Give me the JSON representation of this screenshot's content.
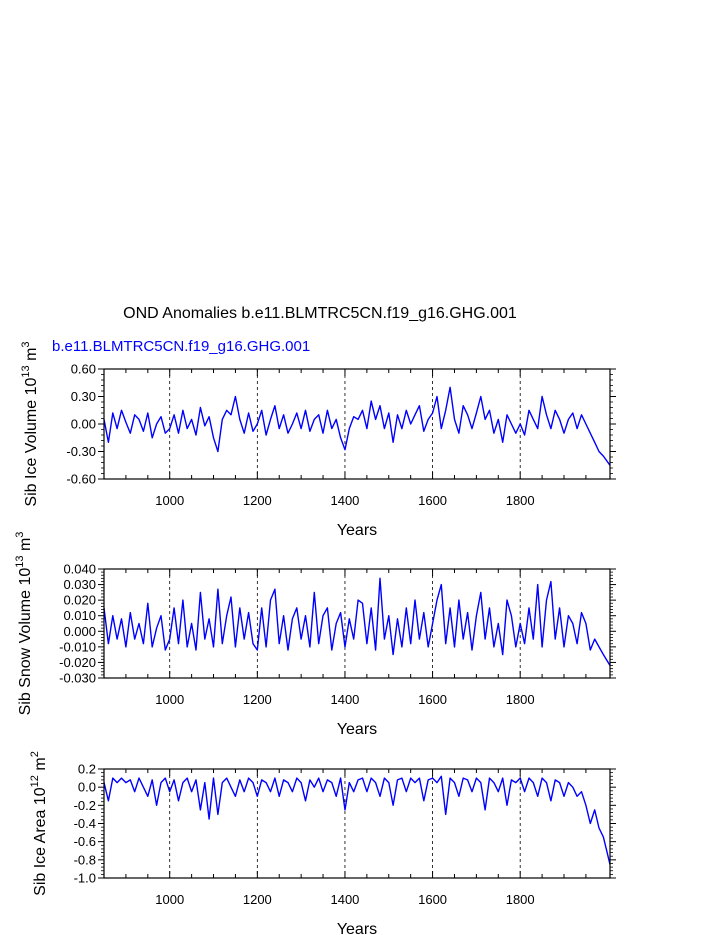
{
  "figure": {
    "title": "OND Anomalies b.e11.BLMTRC5CN.f19_g16.GHG.001",
    "run_label": "b.e11.BLMTRC5CN.f19_g16.GHG.001",
    "line_color": "#0000ff"
  },
  "chart_data": [
    {
      "type": "line",
      "title": "",
      "xlabel": "Years",
      "ylabel_prefix": "Sib Ice Volume 10",
      "ylabel_exp": "13",
      "ylabel_unit": "m",
      "ylabel_unit_exp": "3",
      "xlim": [
        850,
        2005
      ],
      "ylim": [
        -0.6,
        0.6
      ],
      "x_ticks": [
        1000,
        1200,
        1400,
        1600,
        1800
      ],
      "y_ticks": [
        "-0.60",
        "-0.30",
        "0.00",
        "0.30",
        "0.60"
      ],
      "grid": "vertical dashed at x ticks",
      "series": [
        {
          "x": [
            850,
            860,
            870,
            880,
            890,
            900,
            910,
            920,
            930,
            940,
            950,
            960,
            970,
            980,
            990,
            1000,
            1010,
            1020,
            1030,
            1040,
            1050,
            1060,
            1070,
            1080,
            1090,
            1100,
            1110,
            1120,
            1130,
            1140,
            1150,
            1160,
            1170,
            1180,
            1190,
            1200,
            1210,
            1220,
            1230,
            1240,
            1250,
            1260,
            1270,
            1280,
            1290,
            1300,
            1310,
            1320,
            1330,
            1340,
            1350,
            1360,
            1370,
            1380,
            1390,
            1400,
            1410,
            1420,
            1430,
            1440,
            1450,
            1460,
            1470,
            1480,
            1490,
            1500,
            1510,
            1520,
            1530,
            1540,
            1550,
            1560,
            1570,
            1580,
            1590,
            1600,
            1610,
            1620,
            1630,
            1640,
            1650,
            1660,
            1670,
            1680,
            1690,
            1700,
            1710,
            1720,
            1730,
            1740,
            1750,
            1760,
            1770,
            1780,
            1790,
            1800,
            1810,
            1820,
            1830,
            1840,
            1850,
            1860,
            1870,
            1880,
            1890,
            1900,
            1910,
            1920,
            1930,
            1940,
            1950,
            1960,
            1970,
            1980,
            1990,
            2005
          ],
          "values": [
            0.05,
            -0.2,
            0.12,
            -0.05,
            0.15,
            0.02,
            -0.1,
            0.1,
            0.05,
            -0.08,
            0.12,
            -0.15,
            0.0,
            0.08,
            -0.1,
            -0.05,
            0.1,
            -0.1,
            0.15,
            -0.05,
            0.05,
            -0.12,
            0.18,
            -0.02,
            0.08,
            -0.15,
            -0.3,
            0.05,
            0.15,
            0.1,
            0.3,
            0.05,
            -0.1,
            0.12,
            -0.08,
            0.0,
            0.15,
            -0.12,
            0.05,
            0.2,
            -0.05,
            0.1,
            -0.1,
            0.0,
            0.12,
            -0.05,
            0.15,
            -0.08,
            0.05,
            0.1,
            -0.1,
            0.15,
            -0.05,
            0.05,
            -0.15,
            -0.28,
            -0.05,
            0.08,
            0.05,
            0.15,
            -0.05,
            0.25,
            0.05,
            0.2,
            -0.05,
            0.12,
            -0.2,
            0.1,
            -0.05,
            0.15,
            0.0,
            0.1,
            0.2,
            -0.08,
            0.05,
            0.12,
            0.3,
            -0.05,
            0.15,
            0.4,
            0.05,
            -0.1,
            0.2,
            0.1,
            -0.05,
            0.12,
            0.3,
            0.05,
            0.15,
            -0.1,
            0.05,
            -0.2,
            0.1,
            0.0,
            -0.1,
            0.0,
            -0.12,
            0.15,
            0.05,
            -0.05,
            0.3,
            0.1,
            -0.05,
            0.15,
            0.05,
            -0.1,
            0.05,
            0.12,
            -0.05,
            0.1,
            0.0,
            -0.1,
            -0.2,
            -0.3,
            -0.35,
            -0.45
          ]
        }
      ]
    },
    {
      "type": "line",
      "title": "",
      "xlabel": "Years",
      "ylabel_prefix": "Sib Snow Volume 10",
      "ylabel_exp": "13",
      "ylabel_unit": "m",
      "ylabel_unit_exp": "3",
      "xlim": [
        850,
        2005
      ],
      "ylim": [
        -0.03,
        0.04
      ],
      "x_ticks": [
        1000,
        1200,
        1400,
        1600,
        1800
      ],
      "y_ticks": [
        "-0.030",
        "-0.020",
        "-0.010",
        "0.000",
        "0.010",
        "0.020",
        "0.030",
        "0.040"
      ],
      "grid": "vertical dashed at x ticks",
      "series": [
        {
          "x": [
            850,
            860,
            870,
            880,
            890,
            900,
            910,
            920,
            930,
            940,
            950,
            960,
            970,
            980,
            990,
            1000,
            1010,
            1020,
            1030,
            1040,
            1050,
            1060,
            1070,
            1080,
            1090,
            1100,
            1110,
            1120,
            1130,
            1140,
            1150,
            1160,
            1170,
            1180,
            1190,
            1200,
            1210,
            1220,
            1230,
            1240,
            1250,
            1260,
            1270,
            1280,
            1290,
            1300,
            1310,
            1320,
            1330,
            1340,
            1350,
            1360,
            1370,
            1380,
            1390,
            1400,
            1410,
            1420,
            1430,
            1440,
            1450,
            1460,
            1470,
            1480,
            1490,
            1500,
            1510,
            1520,
            1530,
            1540,
            1550,
            1560,
            1570,
            1580,
            1590,
            1600,
            1610,
            1620,
            1630,
            1640,
            1650,
            1660,
            1670,
            1680,
            1690,
            1700,
            1710,
            1720,
            1730,
            1740,
            1750,
            1760,
            1770,
            1780,
            1790,
            1800,
            1810,
            1820,
            1830,
            1840,
            1850,
            1860,
            1870,
            1880,
            1890,
            1900,
            1910,
            1920,
            1930,
            1940,
            1950,
            1960,
            1970,
            1980,
            1990,
            2005
          ],
          "values": [
            0.015,
            -0.008,
            0.01,
            -0.005,
            0.008,
            -0.01,
            0.012,
            -0.005,
            0.005,
            -0.008,
            0.018,
            -0.01,
            0.002,
            0.01,
            -0.012,
            -0.005,
            0.015,
            -0.008,
            0.02,
            -0.01,
            0.005,
            -0.012,
            0.025,
            -0.005,
            0.008,
            -0.01,
            0.027,
            -0.008,
            0.01,
            0.022,
            -0.01,
            0.015,
            -0.005,
            0.012,
            -0.008,
            -0.012,
            0.015,
            -0.01,
            0.02,
            0.027,
            -0.008,
            0.01,
            -0.012,
            0.008,
            0.015,
            -0.005,
            0.01,
            -0.01,
            0.025,
            -0.008,
            0.01,
            0.015,
            -0.012,
            0.005,
            0.012,
            -0.01,
            0.008,
            -0.005,
            0.02,
            0.018,
            -0.008,
            0.015,
            -0.012,
            0.034,
            -0.005,
            0.01,
            -0.015,
            0.008,
            -0.01,
            0.015,
            -0.008,
            0.02,
            -0.005,
            0.012,
            -0.01,
            0.005,
            0.02,
            0.03,
            -0.008,
            0.015,
            -0.01,
            0.02,
            -0.005,
            0.012,
            -0.012,
            0.01,
            0.025,
            -0.005,
            0.015,
            -0.01,
            0.005,
            -0.015,
            0.02,
            0.01,
            -0.01,
            0.005,
            -0.008,
            0.015,
            -0.005,
            0.03,
            -0.01,
            0.02,
            0.032,
            -0.005,
            0.015,
            -0.01,
            0.01,
            0.005,
            -0.008,
            0.012,
            0.005,
            -0.012,
            -0.005,
            -0.01,
            -0.015,
            -0.022
          ]
        }
      ]
    },
    {
      "type": "line",
      "title": "",
      "xlabel": "Years",
      "ylabel_prefix": "Sib Ice Area 10",
      "ylabel_exp": "12",
      "ylabel_unit": "m",
      "ylabel_unit_exp": "2",
      "xlim": [
        850,
        2005
      ],
      "ylim": [
        -1.0,
        0.2
      ],
      "x_ticks": [
        1000,
        1200,
        1400,
        1600,
        1800
      ],
      "y_ticks": [
        "-1.0",
        "-0.8",
        "-0.6",
        "-0.4",
        "-0.2",
        "0.0",
        "0.2"
      ],
      "grid": "vertical dashed at x ticks",
      "series": [
        {
          "x": [
            850,
            860,
            870,
            880,
            890,
            900,
            910,
            920,
            930,
            940,
            950,
            960,
            970,
            980,
            990,
            1000,
            1010,
            1020,
            1030,
            1040,
            1050,
            1060,
            1070,
            1080,
            1090,
            1100,
            1110,
            1120,
            1130,
            1140,
            1150,
            1160,
            1170,
            1180,
            1190,
            1200,
            1210,
            1220,
            1230,
            1240,
            1250,
            1260,
            1270,
            1280,
            1290,
            1300,
            1310,
            1320,
            1330,
            1340,
            1350,
            1360,
            1370,
            1380,
            1390,
            1400,
            1410,
            1420,
            1430,
            1440,
            1450,
            1460,
            1470,
            1480,
            1490,
            1500,
            1510,
            1520,
            1530,
            1540,
            1550,
            1560,
            1570,
            1580,
            1590,
            1600,
            1610,
            1620,
            1630,
            1640,
            1650,
            1660,
            1670,
            1680,
            1690,
            1700,
            1710,
            1720,
            1730,
            1740,
            1750,
            1760,
            1770,
            1780,
            1790,
            1800,
            1810,
            1820,
            1830,
            1840,
            1850,
            1860,
            1870,
            1880,
            1890,
            1900,
            1910,
            1920,
            1930,
            1940,
            1950,
            1960,
            1970,
            1980,
            1990,
            2005
          ],
          "values": [
            0.05,
            -0.15,
            0.1,
            0.05,
            0.1,
            0.05,
            0.08,
            -0.05,
            0.1,
            0.0,
            -0.1,
            0.08,
            -0.2,
            0.05,
            0.1,
            -0.05,
            0.08,
            -0.15,
            0.05,
            0.1,
            -0.05,
            0.08,
            -0.25,
            0.05,
            -0.35,
            0.1,
            -0.3,
            0.05,
            0.1,
            0.0,
            -0.1,
            0.08,
            -0.05,
            0.1,
            0.05,
            -0.1,
            0.08,
            0.05,
            -0.05,
            0.1,
            -0.1,
            0.08,
            0.05,
            -0.05,
            0.1,
            0.05,
            -0.15,
            0.08,
            0.0,
            0.1,
            -0.05,
            0.08,
            0.05,
            -0.1,
            0.1,
            -0.25,
            0.05,
            -0.05,
            0.08,
            0.1,
            -0.05,
            0.1,
            0.05,
            -0.1,
            0.1,
            0.05,
            -0.2,
            0.08,
            0.1,
            -0.05,
            0.1,
            0.05,
            0.1,
            -0.15,
            0.08,
            0.1,
            0.05,
            0.12,
            -0.3,
            0.1,
            0.05,
            -0.1,
            0.1,
            0.08,
            -0.05,
            0.1,
            0.05,
            -0.25,
            0.1,
            0.05,
            -0.05,
            0.1,
            -0.2,
            0.08,
            0.05,
            0.1,
            -0.05,
            0.1,
            0.05,
            -0.1,
            0.1,
            0.05,
            -0.15,
            0.08,
            0.05,
            -0.1,
            0.05,
            0.0,
            -0.1,
            -0.05,
            -0.2,
            -0.4,
            -0.25,
            -0.45,
            -0.55,
            -0.85
          ]
        }
      ]
    }
  ]
}
